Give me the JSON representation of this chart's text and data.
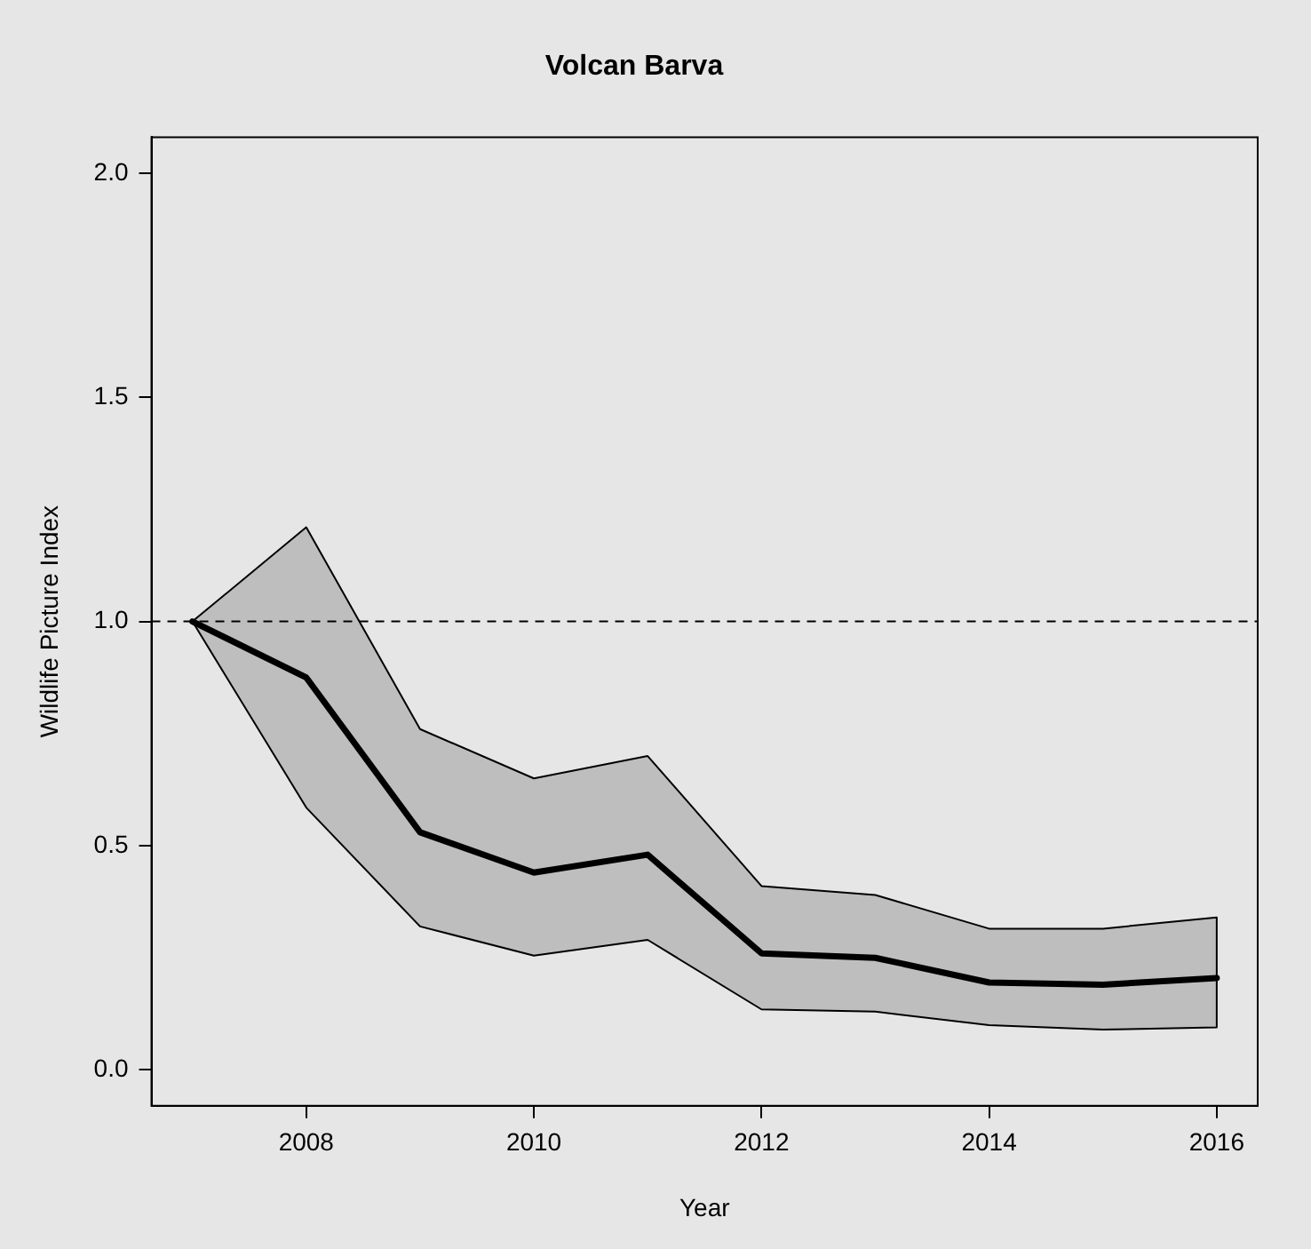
{
  "chart_data": {
    "type": "line",
    "title": "Volcan Barva",
    "xlabel": "Year",
    "ylabel": "Wildlife Picture Index",
    "x": [
      2007,
      2008,
      2009,
      2010,
      2011,
      2012,
      2013,
      2014,
      2015,
      2016
    ],
    "series": [
      {
        "color": "#000000",
        "values": [
          1.0,
          0.875,
          0.53,
          0.44,
          0.48,
          0.26,
          0.25,
          0.195,
          0.19,
          0.205
        ],
        "lower": [
          1.0,
          0.585,
          0.32,
          0.255,
          0.29,
          0.135,
          0.13,
          0.1,
          0.09,
          0.095
        ],
        "upper": [
          1.0,
          1.21,
          0.76,
          0.65,
          0.7,
          0.41,
          0.39,
          0.315,
          0.315,
          0.34
        ]
      }
    ],
    "xlim": [
      2006.64,
      2016.36
    ],
    "xticks": [
      2008,
      2010,
      2012,
      2014,
      2016
    ],
    "ylim": [
      -0.08,
      2.08
    ],
    "yticks": [
      {
        "value": 0,
        "label": "0.0"
      },
      {
        "value": 0.5,
        "label": "0.5"
      },
      {
        "value": 1,
        "label": "1.0"
      },
      {
        "value": 1.5,
        "label": "1.5"
      },
      {
        "value": 2,
        "label": "2.0"
      }
    ],
    "ref_lines": [
      {
        "axis": "y",
        "value": 1,
        "line_style": "dashed",
        "color": "#000000"
      }
    ],
    "grid": false,
    "legend": false,
    "marker": "none",
    "line_style": "solid"
  }
}
